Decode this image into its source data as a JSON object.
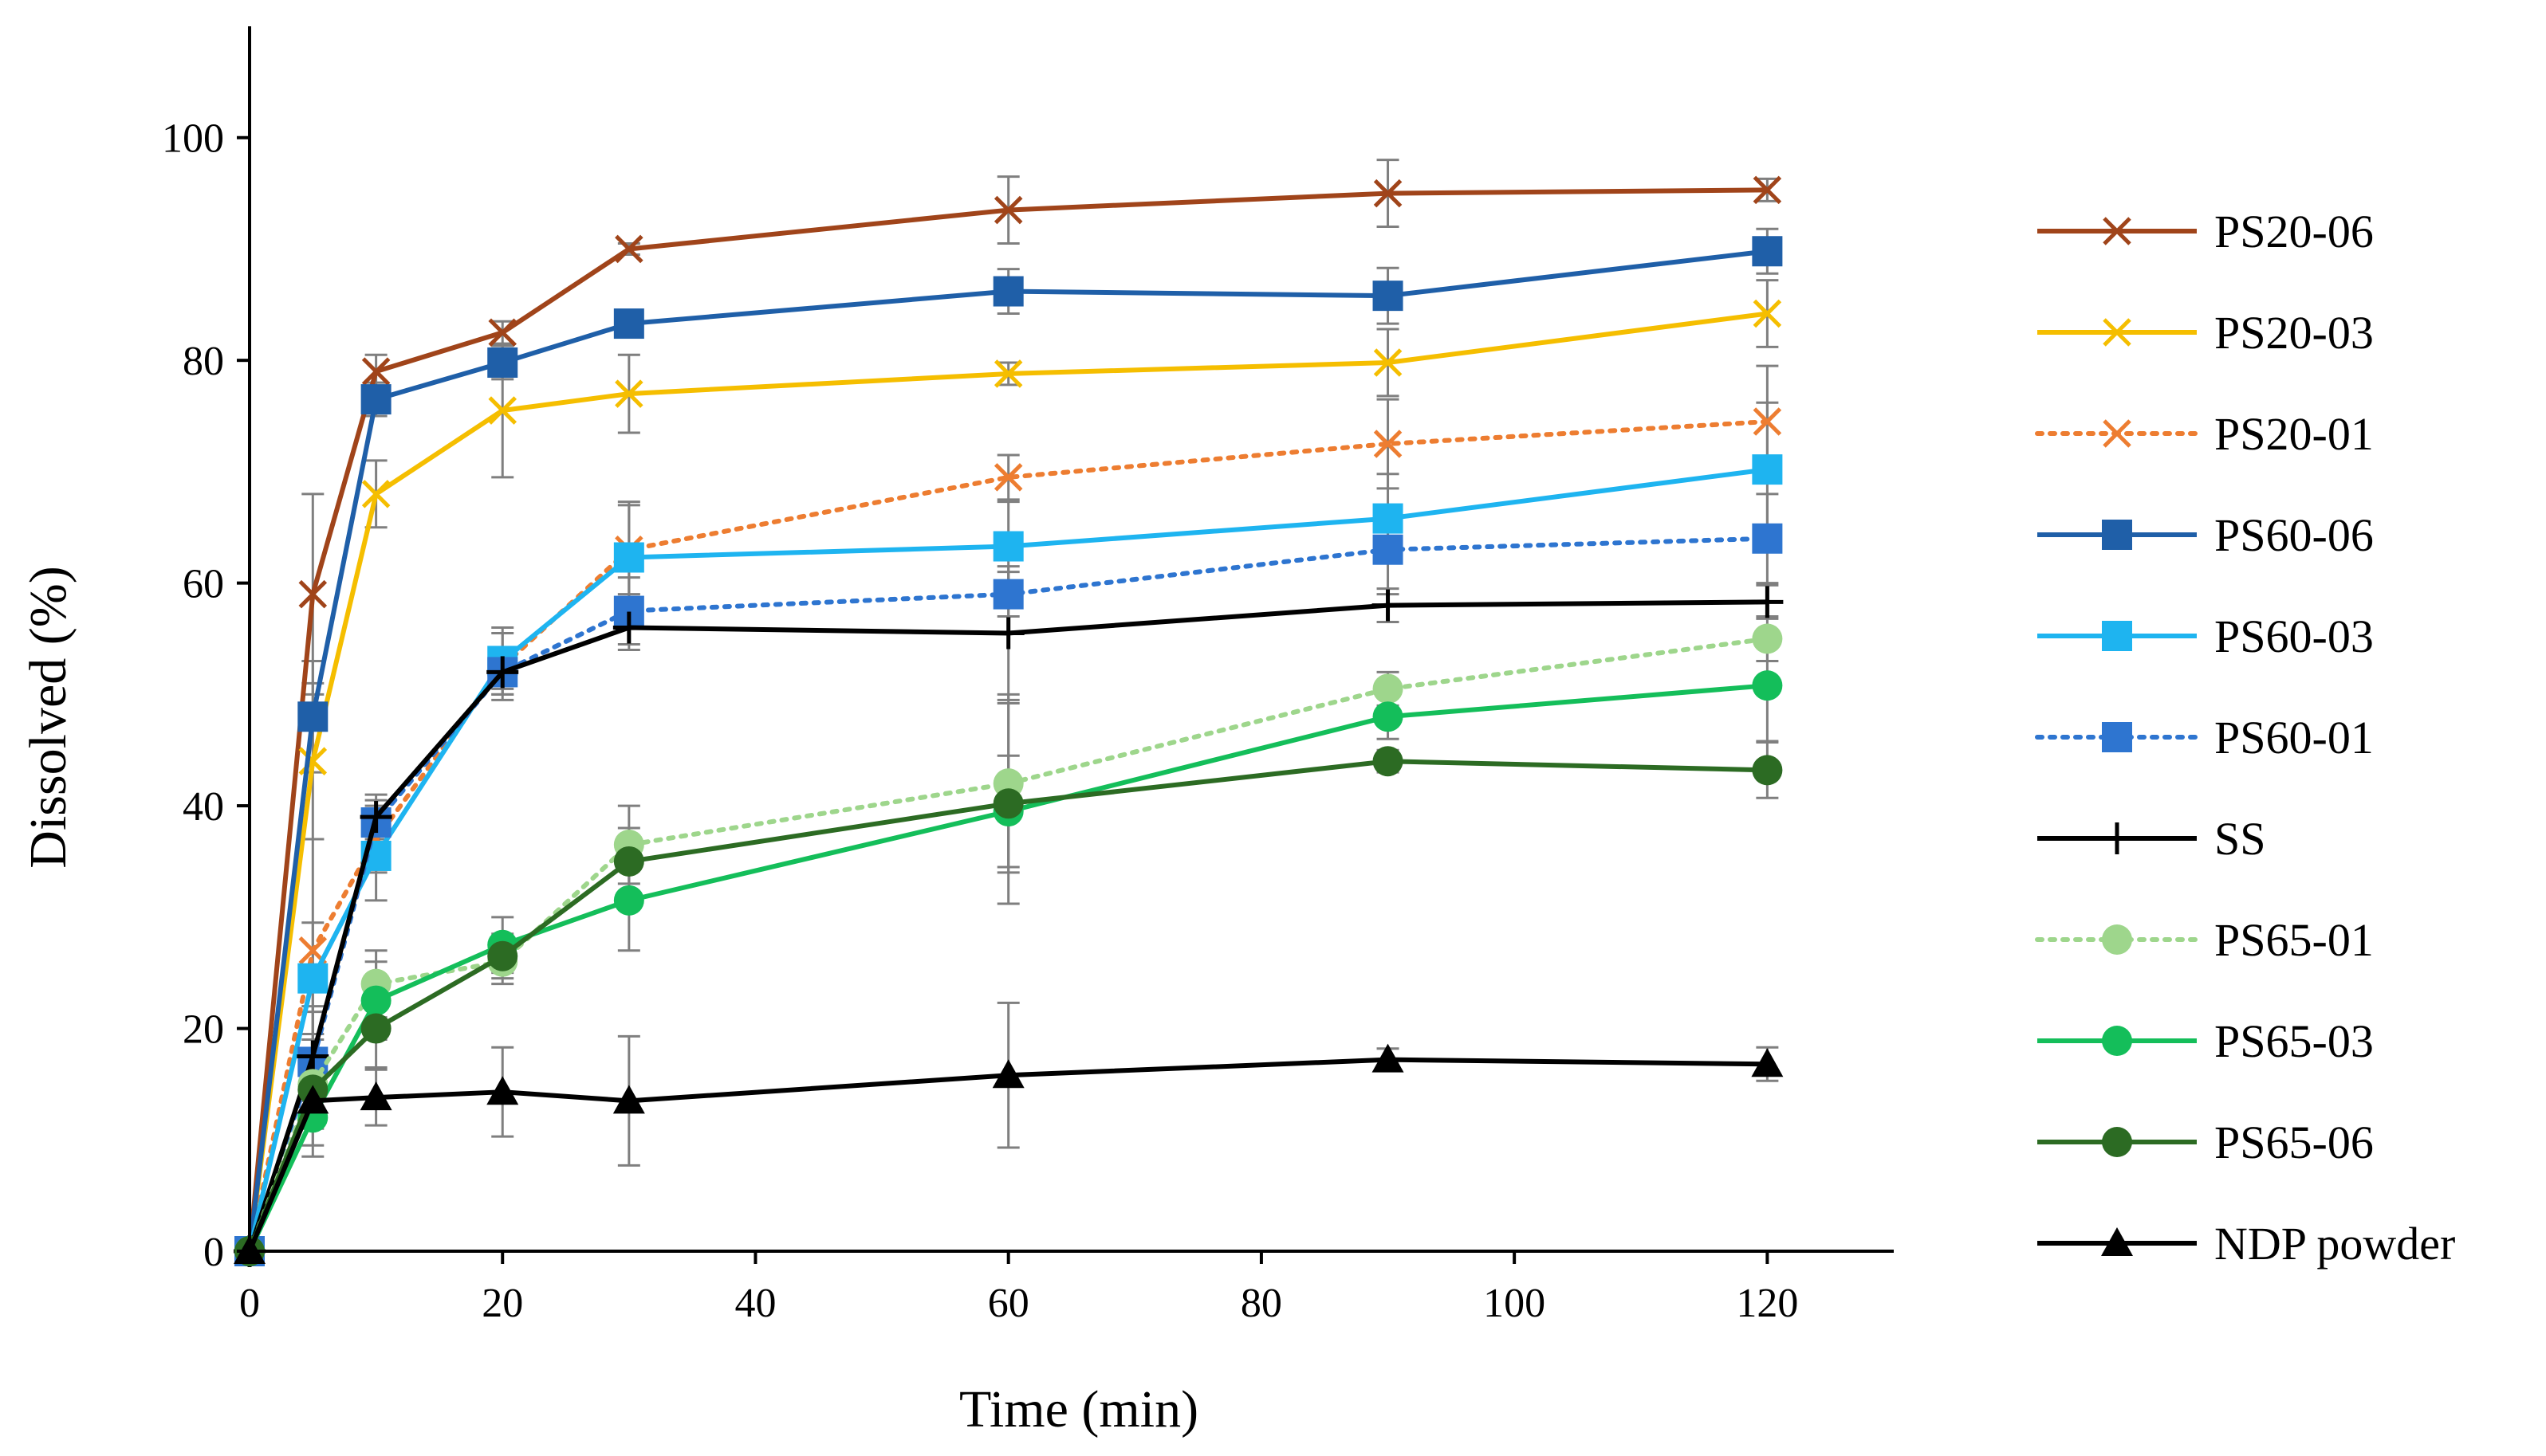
{
  "chart_data": {
    "type": "line",
    "title": "",
    "xlabel": "Time (min)",
    "ylabel": "Dissolved (%)",
    "xlim": [
      0,
      130
    ],
    "ylim": [
      0,
      110
    ],
    "xticks": [
      0,
      20,
      40,
      60,
      80,
      100,
      120
    ],
    "yticks": [
      0,
      20,
      40,
      60,
      80,
      100
    ],
    "grid": false,
    "legend_position": "right",
    "x": [
      0,
      5,
      10,
      20,
      30,
      60,
      90,
      120
    ],
    "series": [
      {
        "name": "PS20-06",
        "color": "#A0441A",
        "marker": "x",
        "dash": "solid",
        "values": [
          0,
          59,
          79,
          82.5,
          90,
          93.5,
          95,
          95.3
        ],
        "errors": [
          0,
          9,
          1.5,
          1,
          0.5,
          3,
          3,
          1
        ]
      },
      {
        "name": "PS20-03",
        "color": "#F5BE00",
        "marker": "x",
        "dash": "solid",
        "values": [
          0,
          44,
          68,
          75.5,
          77,
          78.8,
          79.8,
          84.2
        ],
        "errors": [
          0,
          7,
          3,
          6,
          3.5,
          1,
          3,
          3
        ]
      },
      {
        "name": "PS20-01",
        "color": "#ED7D31",
        "marker": "x",
        "dash": "dotted",
        "values": [
          0,
          27,
          37,
          52.5,
          63,
          69.5,
          72.5,
          74.5
        ],
        "errors": [
          0,
          10,
          3,
          3,
          4,
          2,
          4,
          5
        ]
      },
      {
        "name": "PS60-06",
        "color": "#1F5FA8",
        "marker": "square",
        "dash": "solid",
        "values": [
          0,
          48,
          76.5,
          79.8,
          83.3,
          86.2,
          85.8,
          89.8
        ],
        "errors": [
          0,
          5,
          1.5,
          1.5,
          1,
          2,
          2.5,
          2
        ]
      },
      {
        "name": "PS60-03",
        "color": "#1EB4F0",
        "marker": "square",
        "dash": "solid",
        "values": [
          0,
          24.5,
          35.5,
          53,
          62.3,
          63.3,
          65.8,
          70.2
        ],
        "errors": [
          0,
          5,
          4,
          3,
          5,
          4,
          4,
          6
        ]
      },
      {
        "name": "PS60-01",
        "color": "#2E75D0",
        "marker": "square",
        "dash": "dotted",
        "values": [
          0,
          17,
          38.5,
          52,
          57.5,
          59,
          63,
          64
        ],
        "errors": [
          0,
          5,
          2,
          1.5,
          3,
          2,
          4,
          4
        ]
      },
      {
        "name": "SS",
        "color": "#000000",
        "marker": "plus",
        "dash": "solid",
        "values": [
          0,
          17.5,
          39,
          52,
          56,
          55.5,
          58,
          58.3
        ],
        "errors": [
          0,
          4,
          2,
          2,
          2,
          6,
          1.5,
          1.5
        ]
      },
      {
        "name": "PS65-01",
        "color": "#9ED68C",
        "marker": "circle",
        "dash": "dotted",
        "values": [
          0,
          15,
          24,
          26,
          36.5,
          42,
          50.5,
          55
        ],
        "errors": [
          0,
          4,
          3,
          2,
          3.5,
          8,
          1.5,
          2
        ]
      },
      {
        "name": "PS65-03",
        "color": "#14BE5A",
        "marker": "circle",
        "dash": "solid",
        "values": [
          0,
          12,
          22.5,
          27.5,
          31.5,
          39.5,
          48,
          50.8
        ],
        "errors": [
          0,
          3.5,
          3.5,
          2.5,
          4.5,
          5,
          2,
          5
        ]
      },
      {
        "name": "PS65-06",
        "color": "#2C6B23",
        "marker": "circle",
        "dash": "solid",
        "values": [
          0,
          14.5,
          20,
          26.5,
          35,
          40.2,
          44,
          43.2
        ],
        "errors": [
          0,
          3,
          3.5,
          2,
          3,
          9,
          1,
          2.5
        ]
      },
      {
        "name": "NDP powder",
        "color": "#000000",
        "marker": "triangle",
        "dash": "solid",
        "values": [
          0,
          13.5,
          13.8,
          14.3,
          13.5,
          15.8,
          17.2,
          16.8
        ],
        "errors": [
          0,
          4,
          2.5,
          4,
          5.8,
          6.5,
          1,
          1.5
        ]
      }
    ]
  }
}
